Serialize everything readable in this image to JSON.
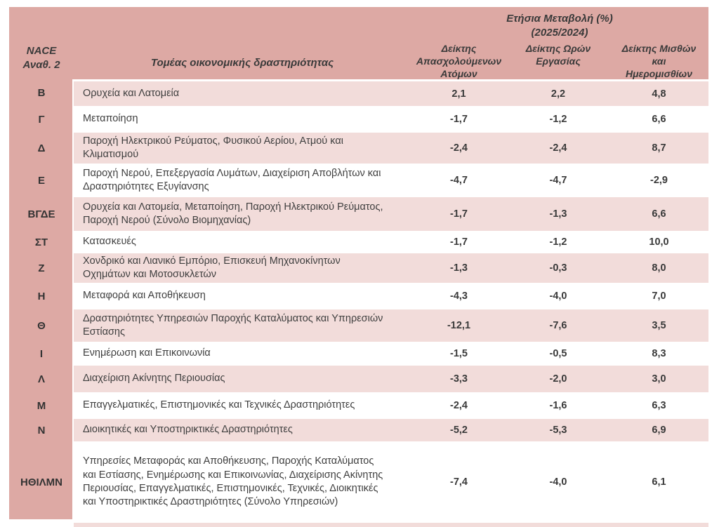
{
  "table": {
    "header": {
      "nace": "NACE\nΑναθ. 2",
      "sector": "Τομέας οικονομικής δραστηριότητας",
      "annual_change": "Ετήσια Μεταβολή (%)\n(2025/2024)",
      "columns": [
        "Δείκτης Απασχολούμενων Ατόμων",
        "Δείκτης Ωρών Εργασίας",
        "Δείκτης Μισθών και Ημερομισθίων"
      ]
    },
    "rows": [
      {
        "code": "Β",
        "sector": "Ορυχεία και Λατομεία",
        "employment": "2,1",
        "hours": "2,2",
        "wages": "4,8"
      },
      {
        "code": "Γ",
        "sector": "Μεταποίηση",
        "employment": "-1,7",
        "hours": "-1,2",
        "wages": "6,6"
      },
      {
        "code": "Δ",
        "sector": "Παροχή Ηλεκτρικού Ρεύματος, Φυσικού Αερίου, Ατμού και Κλιματισμού",
        "employment": "-2,4",
        "hours": "-2,4",
        "wages": "8,7"
      },
      {
        "code": "Ε",
        "sector": "Παροχή Νερού, Επεξεργασία Λυμάτων, Διαχείριση Αποβλήτων και Δραστηριότητες Εξυγίανσης",
        "employment": "-4,7",
        "hours": "-4,7",
        "wages": "-2,9"
      },
      {
        "code": "ΒΓΔΕ",
        "sector": "Ορυχεία και Λατομεία, Μεταποίηση, Παροχή Ηλεκτρικού Ρεύματος, Παροχή Νερού (Σύνολο Βιομηχανίας)",
        "employment": "-1,7",
        "hours": "-1,3",
        "wages": "6,6"
      },
      {
        "code": "ΣΤ",
        "sector": "Κατασκευές",
        "employment": "-1,7",
        "hours": "-1,2",
        "wages": "10,0"
      },
      {
        "code": "Ζ",
        "sector": "Χονδρικό και Λιανικό Εμπόριο, Επισκευή Μηχανοκίνητων Οχημάτων και Μοτοσυκλετών",
        "employment": "-1,3",
        "hours": "-0,3",
        "wages": "8,0"
      },
      {
        "code": "Η",
        "sector": "Μεταφορά και Αποθήκευση",
        "employment": "-4,3",
        "hours": "-4,0",
        "wages": "7,0"
      },
      {
        "code": "Θ",
        "sector": "Δραστηριότητες Υπηρεσιών Παροχής Καταλύματος και Υπηρεσιών Εστίασης",
        "employment": "-12,1",
        "hours": "-7,6",
        "wages": "3,5"
      },
      {
        "code": "Ι",
        "sector": "Ενημέρωση και Επικοινωνία",
        "employment": "-1,5",
        "hours": "-0,5",
        "wages": "8,3"
      },
      {
        "code": "Λ",
        "sector": "Διαχείριση Ακίνητης Περιουσίας",
        "employment": "-3,3",
        "hours": "-2,0",
        "wages": "3,0"
      },
      {
        "code": "Μ",
        "sector": "Επαγγελματικές, Επιστημονικές και Τεχνικές Δραστηριότητες",
        "employment": "-2,4",
        "hours": "-1,6",
        "wages": "6,3"
      },
      {
        "code": "Ν",
        "sector": "Διοικητικές και Υποστηρικτικές Δραστηριότητες",
        "employment": "-5,2",
        "hours": "-5,3",
        "wages": "6,9"
      },
      {
        "code": "ΗΘΙΛΜΝ",
        "sector": "Υπηρεσίες Μεταφοράς και Αποθήκευσης,  Παροχής Καταλύματος και Εστίασης, Ενημέρωσης και Επικοινωνίας, Διαχείρισης Ακίνητης Περιουσίας, Επαγγελματικές, Επιστημονικές, Τεχνικές, Διοικητικές και Υποστηρικτικές Δραστηριότητες (Σύνολο Υπηρεσιών)",
        "employment": "-7,4",
        "hours": "-4,0",
        "wages": "6,1"
      }
    ]
  },
  "colors": {
    "header_pink": "#dda9a4",
    "stripe_pink": "#f2dcda",
    "text_dark": "#3a3a3a"
  }
}
